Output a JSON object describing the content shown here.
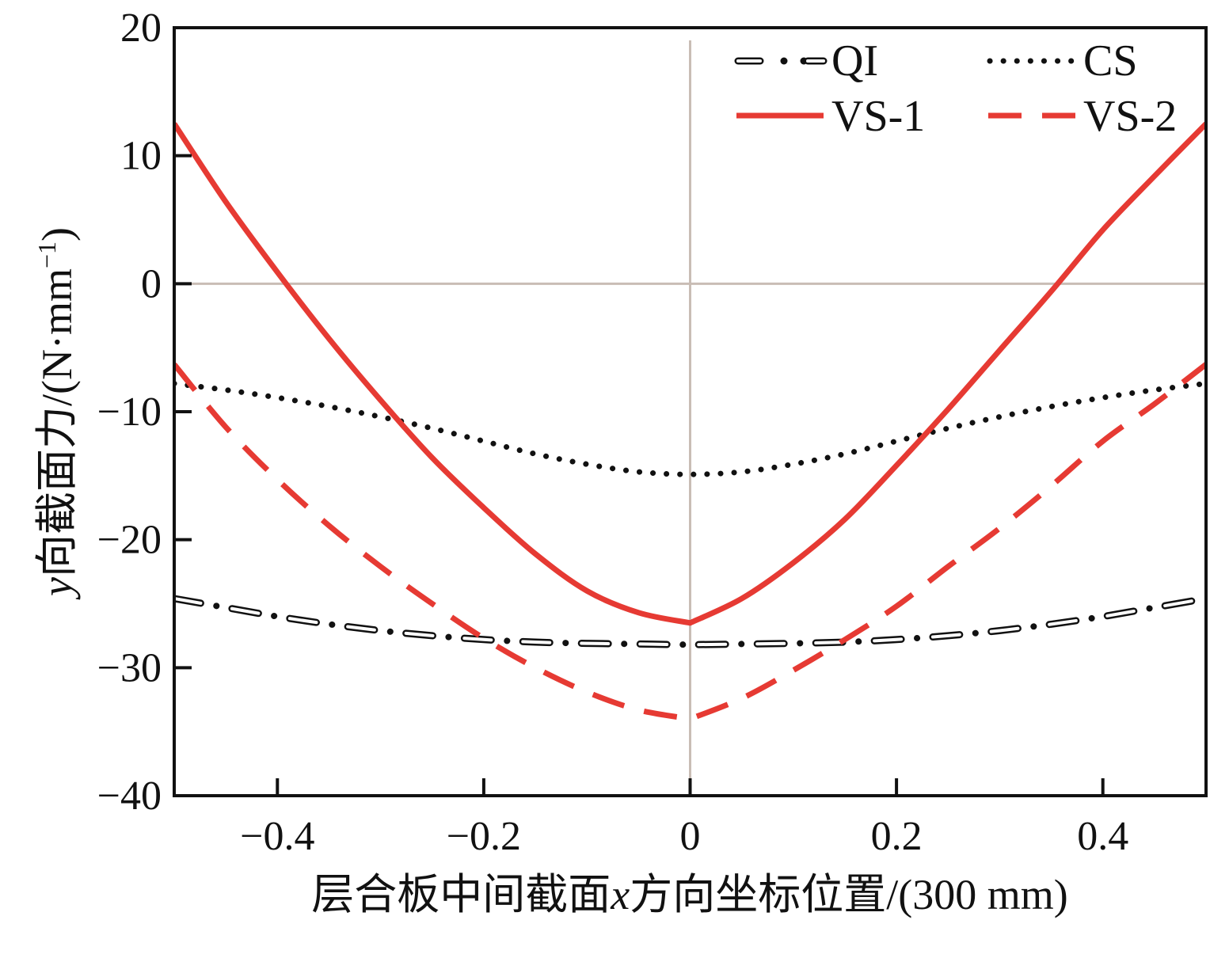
{
  "chart_data": {
    "type": "line",
    "title": "",
    "xlabel_parts": [
      "层合板中间截面",
      "x",
      "方向坐标位置/(300 mm)"
    ],
    "ylabel_parts": [
      "y",
      "向截面力/(N·mm",
      "−1",
      ")"
    ],
    "xlim": [
      -0.5,
      0.5
    ],
    "ylim": [
      -40,
      20
    ],
    "xticks": [
      -0.4,
      -0.2,
      0,
      0.2,
      0.4
    ],
    "xtick_labels": [
      "−0.4",
      "−0.2",
      "0",
      "0.2",
      "0.4"
    ],
    "yticks": [
      -40,
      -30,
      -20,
      -10,
      0,
      10,
      20
    ],
    "ytick_labels": [
      "−40",
      "−30",
      "−20",
      "−10",
      "0",
      "10",
      "20"
    ],
    "grid": "reference lines at x=0 and y=0",
    "legend_position": "top-right",
    "x": [
      -0.5,
      -0.45,
      -0.4,
      -0.35,
      -0.3,
      -0.25,
      -0.2,
      -0.15,
      -0.1,
      -0.05,
      0,
      0.05,
      0.1,
      0.15,
      0.2,
      0.25,
      0.3,
      0.35,
      0.4,
      0.45,
      0.5
    ],
    "series": [
      {
        "name": "QI",
        "style": "dash-dot-outline",
        "color": "#111111",
        "values": [
          -24.6,
          -25.3,
          -26.0,
          -26.6,
          -27.1,
          -27.5,
          -27.8,
          -28.0,
          -28.1,
          -28.15,
          -28.2,
          -28.15,
          -28.1,
          -28.0,
          -27.8,
          -27.5,
          -27.1,
          -26.6,
          -26.0,
          -25.3,
          -24.6
        ]
      },
      {
        "name": "CS",
        "style": "dotted",
        "color": "#111111",
        "values": [
          -7.8,
          -8.3,
          -8.9,
          -9.6,
          -10.4,
          -11.3,
          -12.3,
          -13.3,
          -14.1,
          -14.7,
          -14.9,
          -14.7,
          -14.1,
          -13.3,
          -12.3,
          -11.3,
          -10.4,
          -9.6,
          -8.9,
          -8.3,
          -7.8
        ]
      },
      {
        "name": "VS-1",
        "style": "solid",
        "color": "#e63a33",
        "values": [
          12.5,
          6.4,
          0.9,
          -4.3,
          -9.1,
          -13.6,
          -17.5,
          -21.1,
          -24.0,
          -25.7,
          -26.5,
          -24.6,
          -21.8,
          -18.4,
          -14.2,
          -9.8,
          -5.2,
          -0.6,
          4.2,
          8.4,
          12.5
        ]
      },
      {
        "name": "VS-2",
        "style": "dashed",
        "color": "#e63a33",
        "values": [
          -6.3,
          -11.2,
          -15.3,
          -18.9,
          -22.1,
          -25.0,
          -27.7,
          -30.0,
          -31.9,
          -33.3,
          -34.0,
          -32.4,
          -30.2,
          -27.8,
          -25.2,
          -22.1,
          -19.1,
          -15.8,
          -12.3,
          -9.4,
          -6.3
        ]
      }
    ]
  }
}
